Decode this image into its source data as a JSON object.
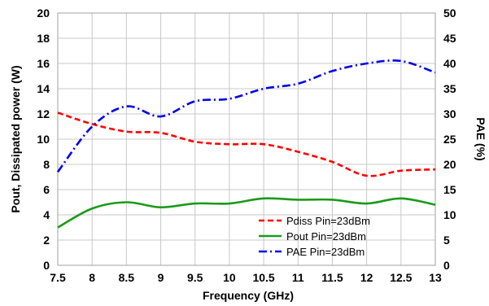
{
  "chart_data": {
    "type": "line",
    "xlabel": "Frequency (GHz)",
    "ylabel": "Pout, Dissipated power (W)",
    "y2label": "PAE (%)",
    "xlim": [
      7.5,
      13
    ],
    "ylim": [
      0,
      20
    ],
    "y2lim": [
      0,
      50
    ],
    "x_ticks": [
      "7.5",
      "8",
      "8.5",
      "9",
      "9.5",
      "10",
      "10.5",
      "11",
      "11.5",
      "12",
      "12.5",
      "13"
    ],
    "y_ticks": [
      "0",
      "2",
      "4",
      "6",
      "8",
      "10",
      "12",
      "14",
      "16",
      "18",
      "20"
    ],
    "y2_ticks": [
      "0",
      "5",
      "10",
      "15",
      "20",
      "25",
      "30",
      "35",
      "40",
      "45",
      "50"
    ],
    "grid": true,
    "legend_position": "bottom-right",
    "series": [
      {
        "name": "Pdiss Pin=23dBm",
        "axis": "left",
        "color": "#ff0000",
        "style": "dashed",
        "x": [
          7.5,
          8.0,
          8.5,
          9.0,
          9.5,
          10.0,
          10.5,
          11.0,
          11.5,
          12.0,
          12.5,
          13.0
        ],
        "y": [
          12.1,
          11.2,
          10.6,
          10.5,
          9.8,
          9.6,
          9.6,
          9.0,
          8.2,
          7.1,
          7.5,
          7.6
        ]
      },
      {
        "name": "Pout Pin=23dBm",
        "axis": "left",
        "color": "#1a9a1a",
        "style": "solid",
        "x": [
          7.5,
          8.0,
          8.5,
          9.0,
          9.5,
          10.0,
          10.5,
          11.0,
          11.5,
          12.0,
          12.5,
          13.0
        ],
        "y": [
          3.0,
          4.5,
          5.0,
          4.6,
          4.9,
          4.9,
          5.3,
          5.2,
          5.2,
          4.9,
          5.3,
          4.8
        ]
      },
      {
        "name": "PAE Pin=23dBm",
        "axis": "right",
        "color": "#0000ee",
        "style": "dashdot",
        "x": [
          7.5,
          8.0,
          8.5,
          9.0,
          9.5,
          10.0,
          10.5,
          11.0,
          11.5,
          12.0,
          12.5,
          13.0
        ],
        "y": [
          18.5,
          27.5,
          31.5,
          29.5,
          32.5,
          33.0,
          35.0,
          36.0,
          38.5,
          40.0,
          40.5,
          38.2
        ]
      }
    ]
  }
}
